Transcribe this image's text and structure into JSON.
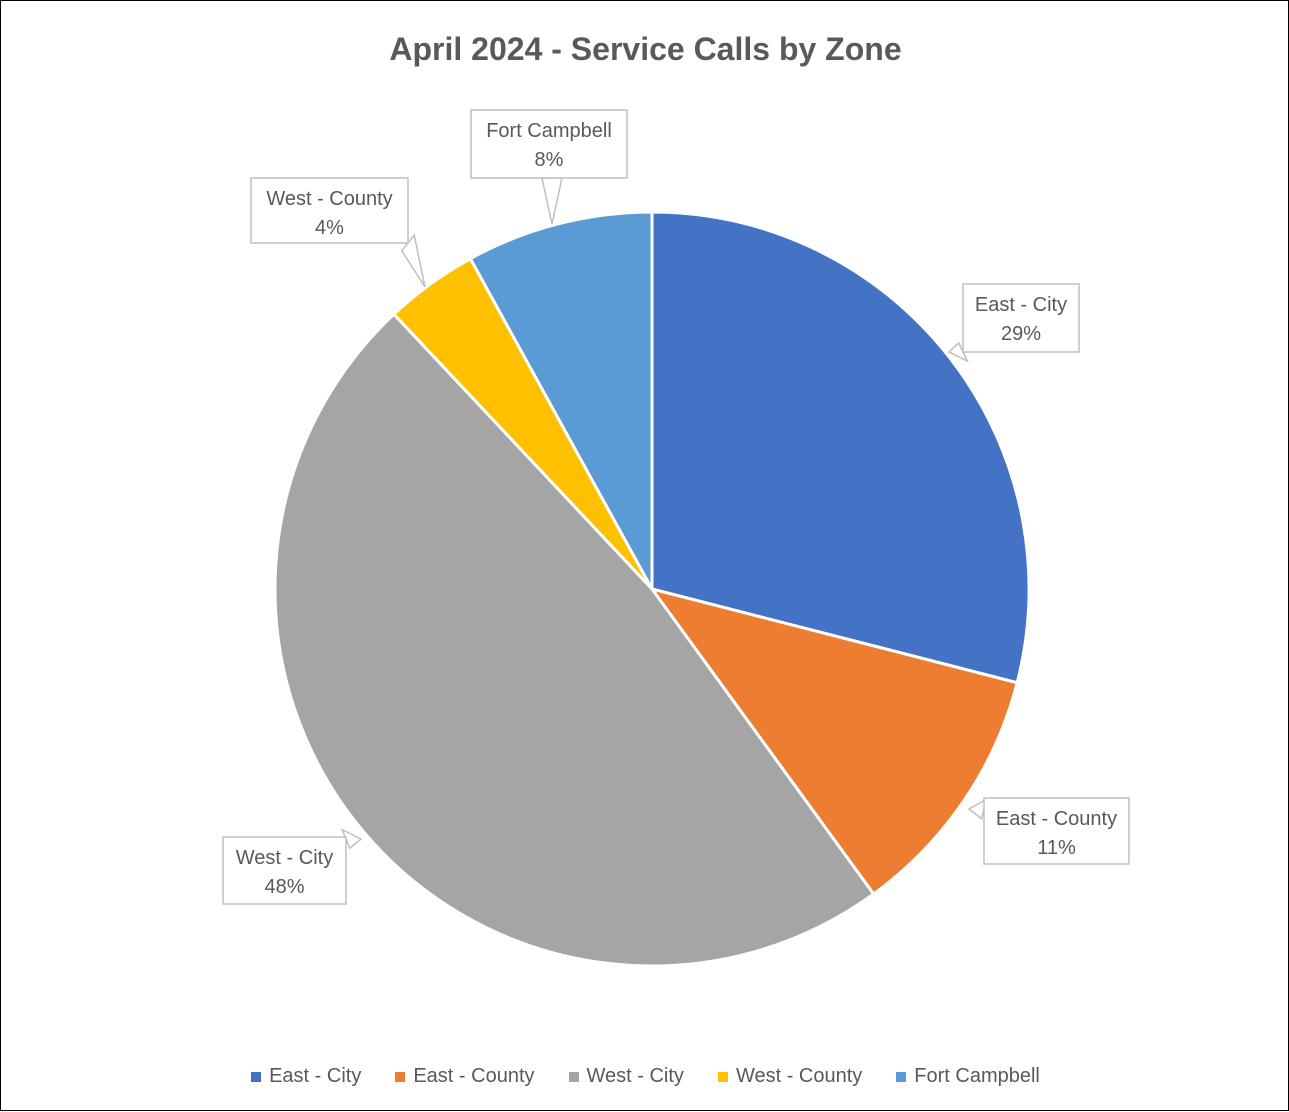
{
  "chart_data": {
    "type": "pie",
    "title": "April 2024 - Service Calls by Zone",
    "categories": [
      "East - City",
      "East - County",
      "West - City",
      "West - County",
      "Fort Campbell"
    ],
    "values": [
      29,
      11,
      48,
      4,
      8
    ],
    "data_labels": [
      "29%",
      "11%",
      "48%",
      "4%",
      "8%"
    ],
    "colors": [
      "#4472C4",
      "#ED7D31",
      "#A5A5A5",
      "#FFC000",
      "#5B9BD5"
    ],
    "legend_position": "bottom"
  }
}
